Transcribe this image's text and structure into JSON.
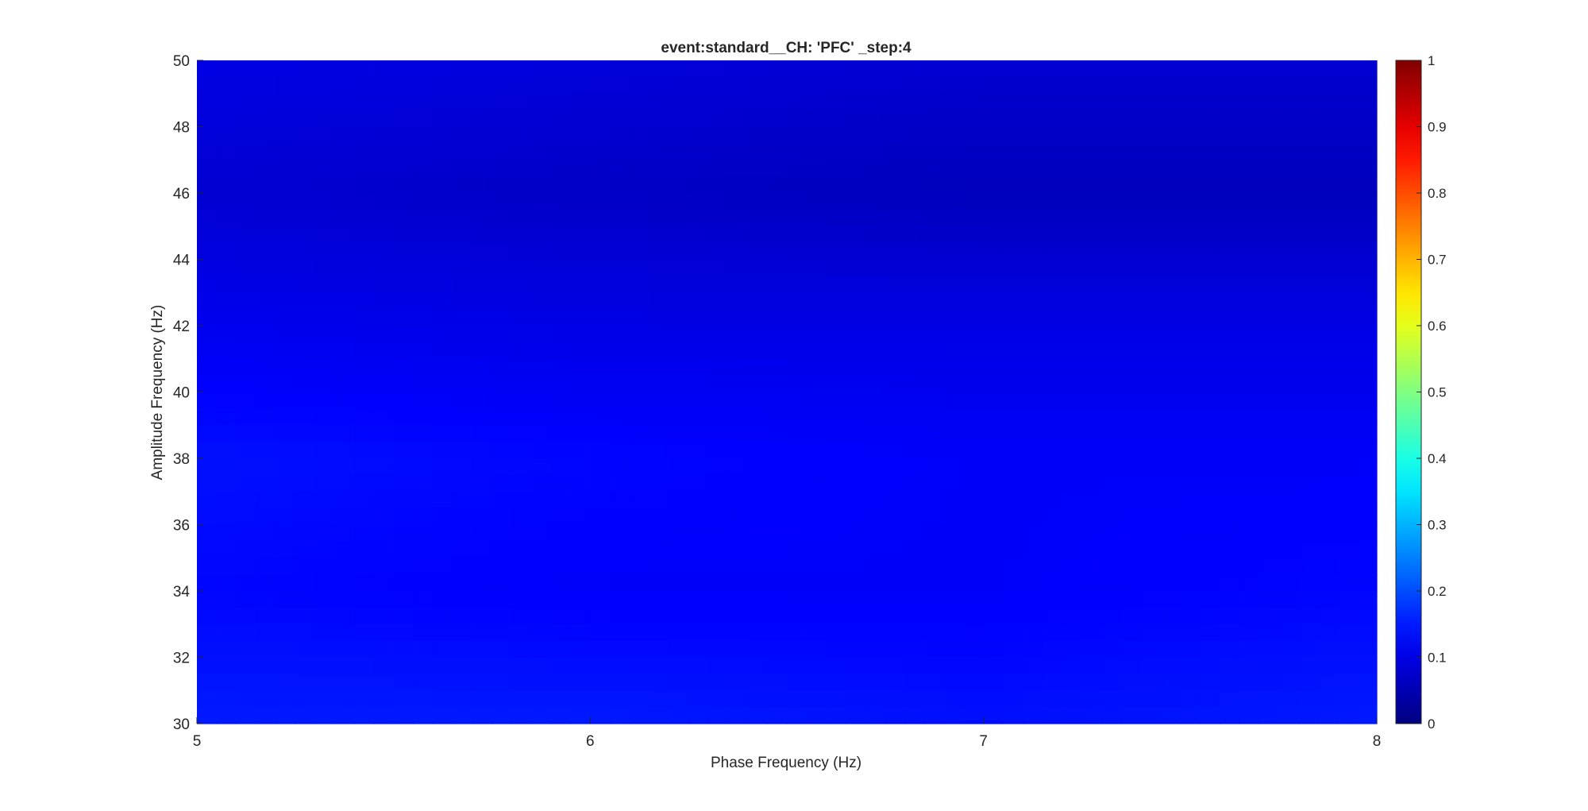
{
  "chart_data": {
    "type": "heatmap",
    "title": "event:standard__CH: 'PFC' _step:4",
    "xlabel": "Phase Frequency (Hz)",
    "ylabel": "Amplitude Frequency (Hz)",
    "xlim": [
      5,
      8
    ],
    "ylim": [
      30,
      50
    ],
    "x_ticks": [
      "5",
      "6",
      "7",
      "8"
    ],
    "y_ticks": [
      "30",
      "32",
      "34",
      "36",
      "38",
      "40",
      "42",
      "44",
      "46",
      "48",
      "50"
    ],
    "colorbar": {
      "colormap": "jet",
      "clim": [
        0,
        1
      ],
      "ticks": [
        "0",
        "0.1",
        "0.2",
        "0.3",
        "0.4",
        "0.5",
        "0.6",
        "0.7",
        "0.8",
        "0.9",
        "1"
      ]
    },
    "x": [
      5,
      6,
      7,
      8
    ],
    "y": [
      30,
      34,
      38,
      42,
      46,
      50
    ],
    "z": [
      [
        0.15,
        0.15,
        0.14,
        0.15
      ],
      [
        0.13,
        0.12,
        0.12,
        0.13
      ],
      [
        0.14,
        0.13,
        0.12,
        0.12
      ],
      [
        0.11,
        0.1,
        0.1,
        0.1
      ],
      [
        0.08,
        0.07,
        0.06,
        0.06
      ],
      [
        0.1,
        0.09,
        0.08,
        0.08
      ]
    ]
  }
}
